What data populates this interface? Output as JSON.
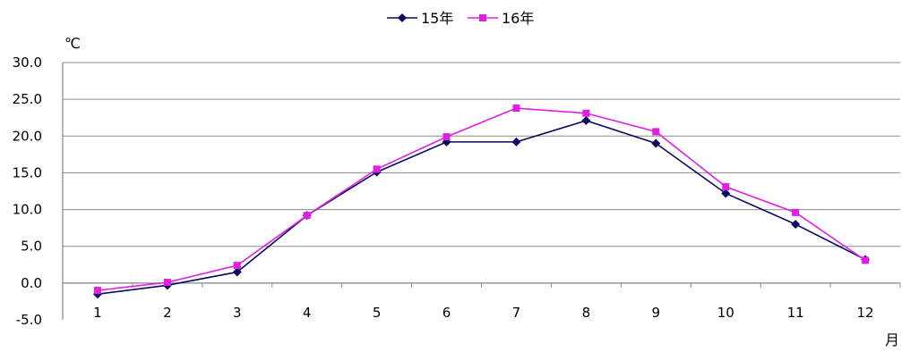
{
  "chart_data": {
    "type": "line",
    "title": "",
    "ylabel": "℃",
    "xlabel": "月",
    "ylim": [
      -5,
      30
    ],
    "yticks": [
      "30.0",
      "25.0",
      "20.0",
      "15.0",
      "10.0",
      "5.0",
      "0.0",
      "-5.0"
    ],
    "categories": [
      "1",
      "2",
      "3",
      "4",
      "5",
      "6",
      "7",
      "8",
      "9",
      "10",
      "11",
      "12"
    ],
    "grid": true,
    "legend_position": "top-center",
    "series": [
      {
        "name": "15年",
        "color": "#0a0a5e",
        "marker": "diamond",
        "values": [
          -1.5,
          -0.3,
          1.5,
          9.2,
          15.1,
          19.2,
          19.2,
          22.1,
          19.0,
          12.2,
          8.0,
          3.2
        ]
      },
      {
        "name": "16年",
        "color": "#e020e0",
        "marker": "square",
        "values": [
          -1.0,
          0.1,
          2.4,
          9.2,
          15.5,
          19.9,
          23.8,
          23.1,
          20.6,
          13.1,
          9.6,
          3.1
        ]
      }
    ]
  }
}
